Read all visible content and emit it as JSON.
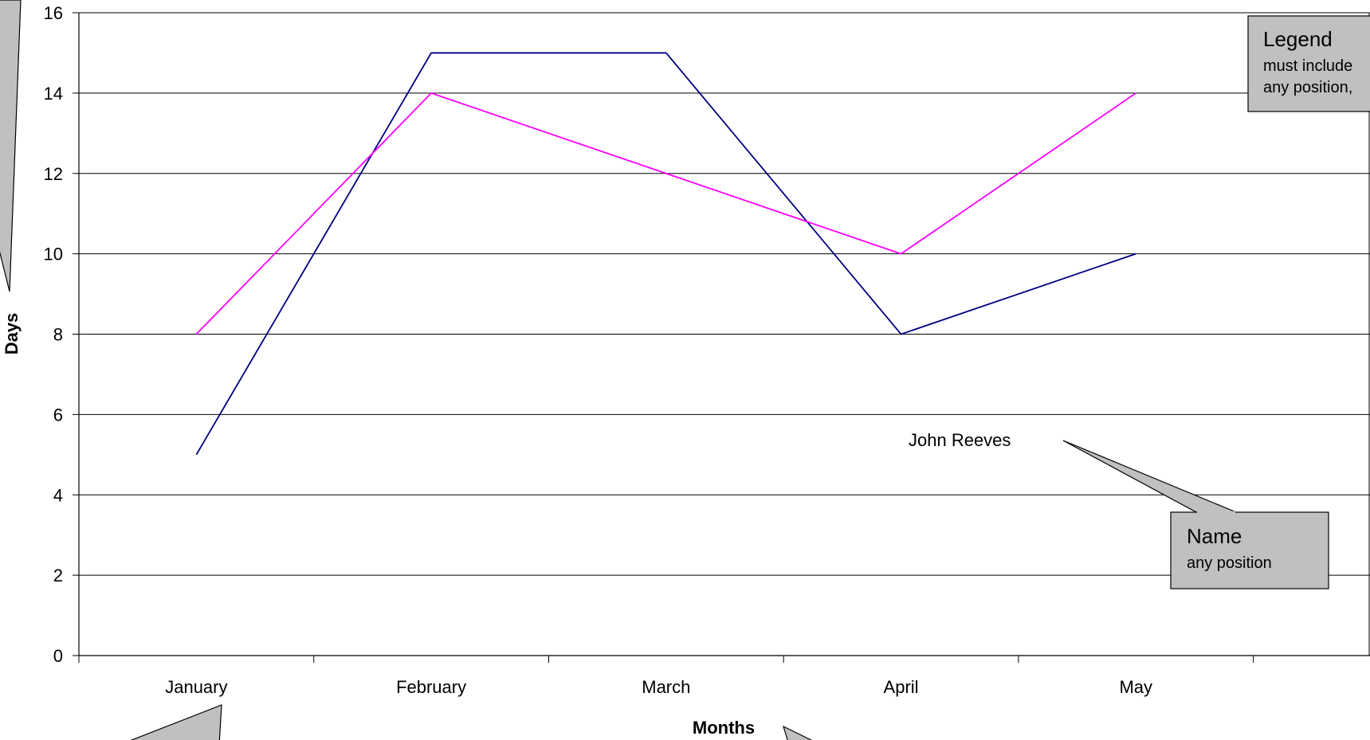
{
  "chart_data": {
    "type": "line",
    "categories": [
      "January",
      "February",
      "March",
      "April",
      "May"
    ],
    "series": [
      {
        "values": [
          5,
          15,
          15,
          8,
          10
        ],
        "color": "#000080"
      },
      {
        "values": [
          8,
          14,
          12,
          10,
          14
        ],
        "color": "#ff00ff"
      }
    ],
    "xlabel": "Months",
    "ylabel": "Days",
    "ylim": [
      0,
      16
    ],
    "yticks": [
      "0",
      "2",
      "4",
      "6",
      "8",
      "10",
      "12",
      "14",
      "16"
    ],
    "grid": true,
    "label": "John Reeves"
  },
  "annotations": {
    "legend": {
      "title": "Legend",
      "line1": "must include",
      "line2": "any position,"
    },
    "name": {
      "title": "Name",
      "line1": "any position"
    }
  }
}
